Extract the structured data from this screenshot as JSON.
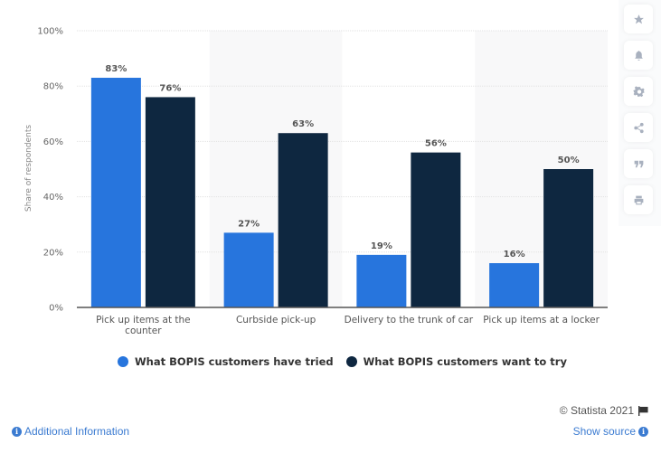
{
  "chart_data": {
    "type": "bar",
    "title": "",
    "xlabel": "",
    "ylabel": "Share of respondents",
    "ylim": [
      0,
      100
    ],
    "yticks": [
      0,
      20,
      40,
      60,
      80,
      100
    ],
    "ytick_labels": [
      "0%",
      "20%",
      "40%",
      "60%",
      "80%",
      "100%"
    ],
    "grid": true,
    "legend_position": "bottom",
    "categories": [
      [
        "Pick up items at the",
        "counter"
      ],
      [
        "Curbside pick-up"
      ],
      [
        "Delivery to the trunk of car"
      ],
      [
        "Pick up items at a locker"
      ]
    ],
    "series": [
      {
        "name": "What BOPIS customers have tried",
        "color": "#2775dd",
        "values": [
          83,
          27,
          19,
          16
        ],
        "labels": [
          "83%",
          "27%",
          "19%",
          "16%"
        ]
      },
      {
        "name": "What BOPIS customers want to try",
        "color": "#0e2740",
        "values": [
          76,
          63,
          56,
          50
        ],
        "labels": [
          "76%",
          "63%",
          "56%",
          "50%"
        ]
      }
    ]
  },
  "legend": {
    "items": [
      {
        "label": "What BOPIS customers have tried",
        "color": "#2775dd"
      },
      {
        "label": "What BOPIS customers want to try",
        "color": "#0e2740"
      }
    ]
  },
  "toolbar": {
    "items": [
      {
        "name": "favorite",
        "icon": "star-icon"
      },
      {
        "name": "notification",
        "icon": "bell-icon"
      },
      {
        "name": "settings",
        "icon": "gear-icon"
      },
      {
        "name": "share",
        "icon": "share-icon"
      },
      {
        "name": "cite",
        "icon": "quote-icon"
      },
      {
        "name": "print",
        "icon": "print-icon"
      }
    ]
  },
  "footer": {
    "copyright": "© Statista 2021",
    "additional_info": "Additional Information",
    "show_source": "Show source",
    "info_glyph": "i"
  }
}
